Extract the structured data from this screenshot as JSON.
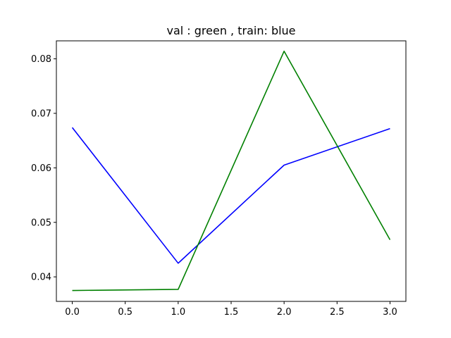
{
  "chart_data": {
    "type": "line",
    "title": "val : green , train: blue",
    "xlabel": "",
    "ylabel": "",
    "x": [
      0,
      1,
      2,
      3
    ],
    "xlim": [
      -0.15,
      3.15
    ],
    "ylim": [
      0.0355,
      0.0833
    ],
    "xticks": [
      0.0,
      0.5,
      1.0,
      1.5,
      2.0,
      2.5,
      3.0
    ],
    "xtick_labels": [
      "0.0",
      "0.5",
      "1.0",
      "1.5",
      "2.0",
      "2.5",
      "3.0"
    ],
    "yticks": [
      0.04,
      0.05,
      0.06,
      0.07,
      0.08
    ],
    "ytick_labels": [
      "0.04",
      "0.05",
      "0.06",
      "0.07",
      "0.08"
    ],
    "grid": false,
    "legend": "none",
    "series": [
      {
        "color": "#0000ff",
        "values": [
          0.0674,
          0.0425,
          0.0605,
          0.0672
        ]
      },
      {
        "color": "#008000",
        "values": [
          0.0375,
          0.0377,
          0.0814,
          0.0468
        ]
      }
    ]
  }
}
